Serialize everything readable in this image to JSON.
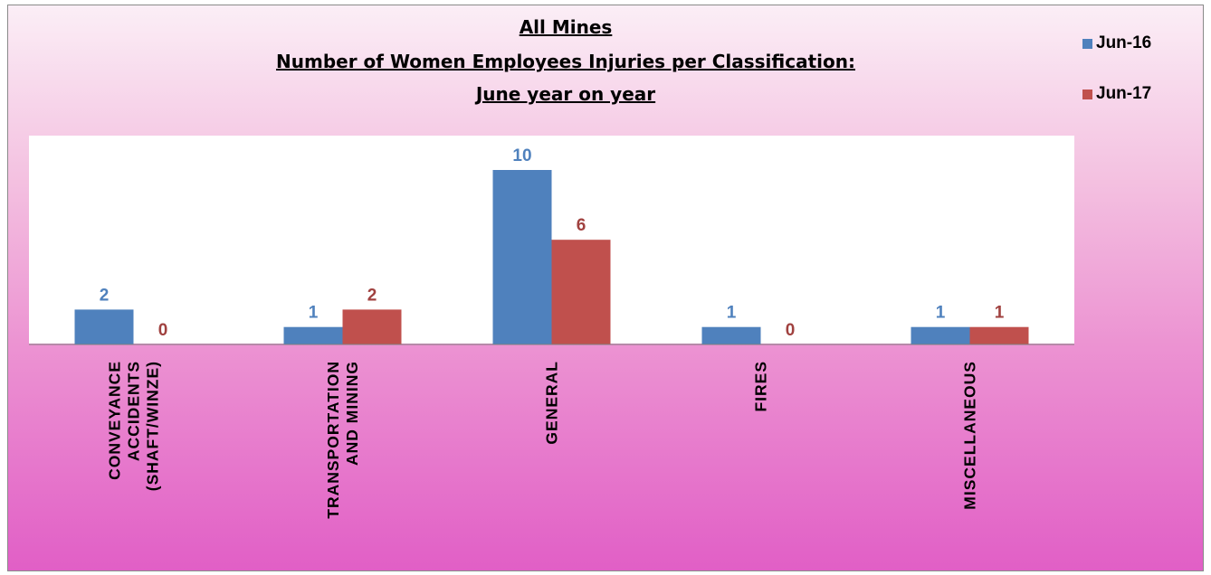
{
  "chart_data": {
    "type": "bar",
    "title_lines": [
      "All Mines",
      "Number of Women Employees Injuries per Classification:",
      "June year on year"
    ],
    "categories": [
      [
        "CONVEYANCE",
        "ACCIDENTS",
        "(SHAFT/WINZE)"
      ],
      [
        "TRANSPORTATION",
        "AND MINING"
      ],
      [
        "GENERAL"
      ],
      [
        "FIRES"
      ],
      [
        "MISCELLANEOUS"
      ]
    ],
    "series": [
      {
        "name": "Jun-16",
        "values": [
          2,
          1,
          10,
          1,
          1
        ],
        "color": "#4f81bd"
      },
      {
        "name": "Jun-17",
        "values": [
          0,
          2,
          6,
          0,
          1
        ],
        "color": "#c0504d"
      }
    ],
    "label_colors": {
      "Jun-16": "#4f81bd",
      "Jun-17": "#a0413f"
    },
    "ylim": [
      0,
      12
    ],
    "grid": false,
    "legend_position": "top-right"
  }
}
